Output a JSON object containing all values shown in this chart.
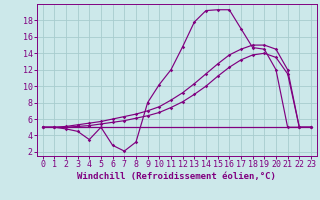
{
  "bg_color": "#cce8ea",
  "grid_color": "#a8ccce",
  "line_color": "#800080",
  "xlabel": "Windchill (Refroidissement éolien,°C)",
  "xlabel_fontsize": 6.5,
  "tick_fontsize": 6.0,
  "xlim": [
    -0.5,
    23.5
  ],
  "ylim": [
    1.5,
    20.0
  ],
  "yticks": [
    2,
    4,
    6,
    8,
    10,
    12,
    14,
    16,
    18
  ],
  "xticks": [
    0,
    1,
    2,
    3,
    4,
    5,
    6,
    7,
    8,
    9,
    10,
    11,
    12,
    13,
    14,
    15,
    16,
    17,
    18,
    19,
    20,
    21,
    22,
    23
  ],
  "line1_x": [
    0,
    1,
    2,
    3,
    4,
    5,
    6,
    7,
    8,
    9,
    10,
    11,
    12,
    13,
    14,
    15,
    16,
    17,
    18,
    19,
    20,
    21,
    22,
    23
  ],
  "line1_y": [
    5,
    5,
    5,
    5,
    5,
    5,
    5,
    5,
    5,
    5,
    5,
    5,
    5,
    5,
    5,
    5,
    5,
    5,
    5,
    5,
    5,
    5,
    5,
    5
  ],
  "line2_x": [
    0,
    1,
    2,
    3,
    4,
    5,
    6,
    7,
    8,
    9,
    10,
    11,
    12,
    13,
    14,
    15,
    16,
    17,
    18,
    19,
    20,
    21,
    22,
    23
  ],
  "line2_y": [
    5.0,
    5.0,
    4.8,
    4.5,
    3.5,
    5.0,
    2.8,
    2.1,
    3.2,
    8.0,
    10.2,
    12.0,
    14.8,
    17.8,
    19.2,
    19.3,
    19.3,
    17.0,
    14.7,
    14.5,
    12.0,
    5.0,
    5.0,
    5.0
  ],
  "line3_x": [
    0,
    1,
    2,
    3,
    4,
    5,
    6,
    7,
    8,
    9,
    10,
    11,
    12,
    13,
    14,
    15,
    16,
    17,
    18,
    19,
    20,
    21,
    22,
    23
  ],
  "line3_y": [
    5.0,
    5.0,
    5.1,
    5.3,
    5.5,
    5.7,
    6.0,
    6.3,
    6.6,
    7.0,
    7.5,
    8.3,
    9.2,
    10.3,
    11.5,
    12.7,
    13.8,
    14.5,
    15.0,
    15.0,
    14.5,
    12.0,
    5.0,
    5.0
  ],
  "line4_x": [
    0,
    1,
    2,
    3,
    4,
    5,
    6,
    7,
    8,
    9,
    10,
    11,
    12,
    13,
    14,
    15,
    16,
    17,
    18,
    19,
    20,
    21,
    22,
    23
  ],
  "line4_y": [
    5.0,
    5.0,
    5.0,
    5.1,
    5.2,
    5.4,
    5.6,
    5.8,
    6.1,
    6.4,
    6.8,
    7.4,
    8.1,
    9.0,
    10.0,
    11.2,
    12.3,
    13.2,
    13.8,
    14.0,
    13.5,
    11.5,
    5.0,
    5.0
  ]
}
